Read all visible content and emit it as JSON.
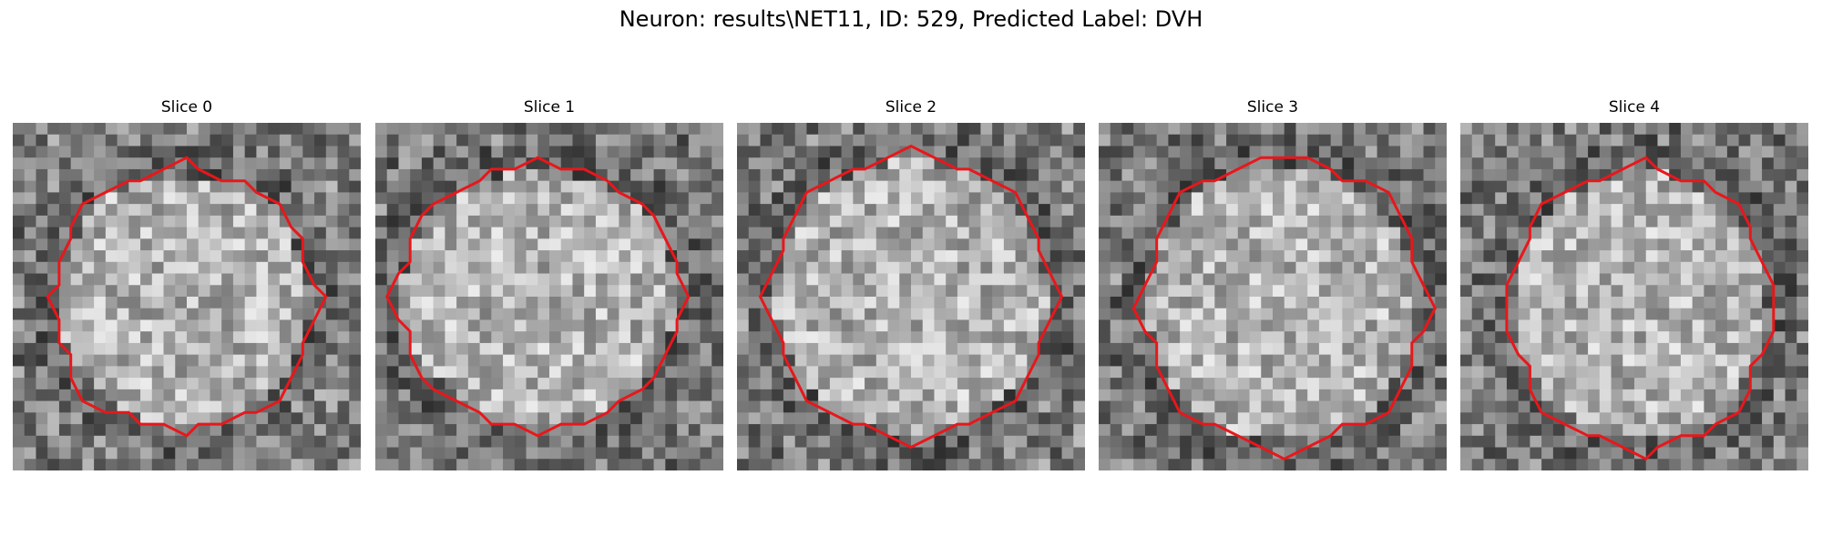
{
  "figure": {
    "title": "Neuron: results\\NET11, ID: 529, Predicted Label: DVH"
  },
  "panels": [
    {
      "title": "Slice 0"
    },
    {
      "title": "Slice 1"
    },
    {
      "title": "Slice 2"
    },
    {
      "title": "Slice 3"
    },
    {
      "title": "Slice 4"
    }
  ],
  "colors": {
    "contour": "#e8171b",
    "background": "#ffffff"
  },
  "image": {
    "grid_size": 30,
    "colormap": "gray"
  }
}
